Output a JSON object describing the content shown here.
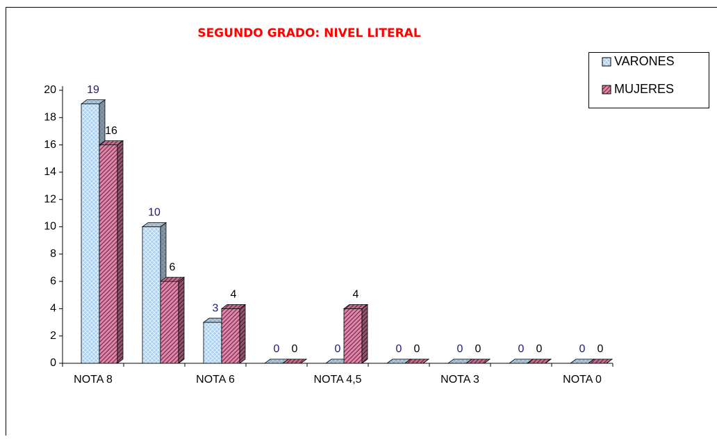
{
  "chart_data": {
    "type": "bar3d",
    "title": "SEGUNDO GRADO: NIVEL LITERAL",
    "categories": [
      "NOTA 8",
      null,
      "NOTA 6",
      null,
      "NOTA 4,5",
      null,
      "NOTA 3",
      null,
      "NOTA 0"
    ],
    "series": [
      {
        "name": "VARONES",
        "color": "#a8d0f0",
        "label_color": "#1a1a7a",
        "values": [
          19,
          10,
          3,
          0,
          0,
          0,
          0,
          0,
          0
        ]
      },
      {
        "name": "MUJERES",
        "color": "#d98aa8",
        "label_color": "#000000",
        "values": [
          16,
          6,
          4,
          0,
          4,
          0,
          0,
          0,
          0
        ]
      }
    ],
    "ylim": [
      0,
      20
    ],
    "yticks": [
      0,
      2,
      4,
      6,
      8,
      10,
      12,
      14,
      16,
      18,
      20
    ],
    "legend": "top-right"
  }
}
